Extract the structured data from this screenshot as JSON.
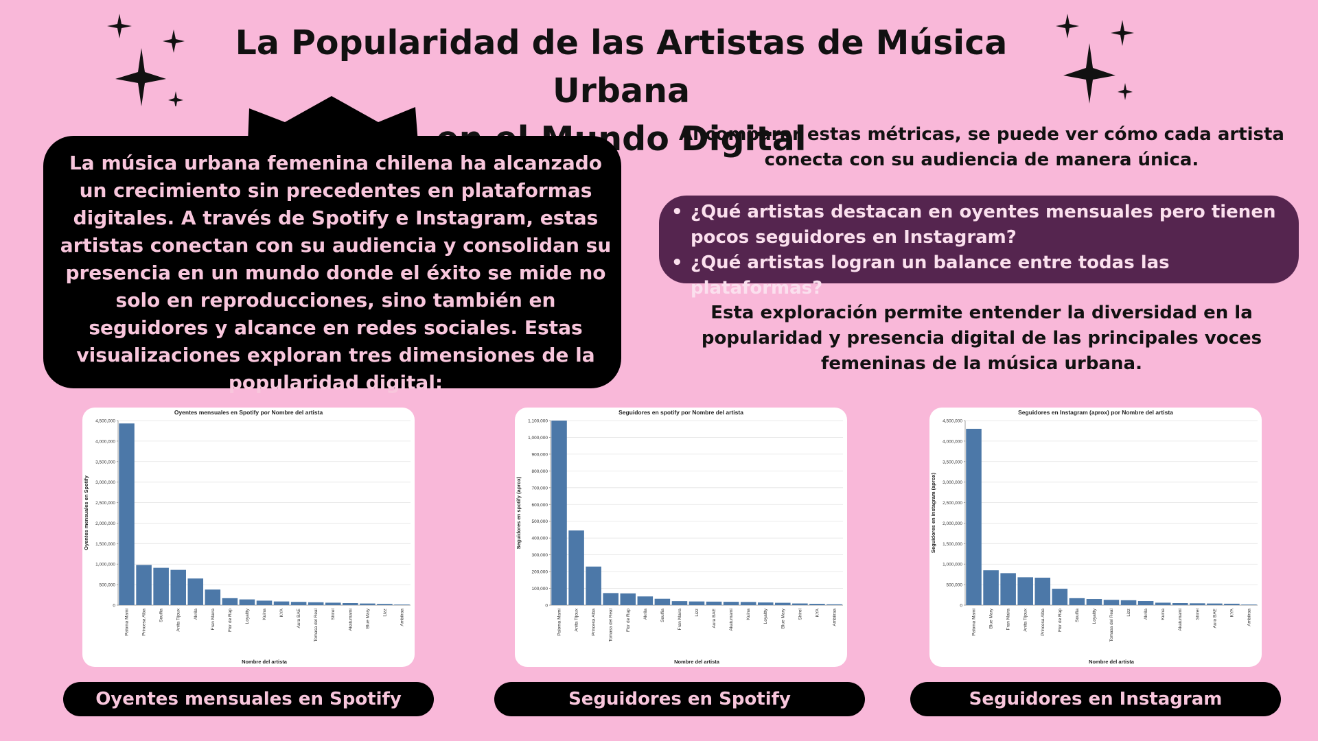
{
  "header": {
    "title_line1": "La Popularidad de las Artistas de Música Urbana",
    "title_line2": "en el Mundo Digital"
  },
  "intro": {
    "text": "La música urbana femenina chilena ha alcanzado un crecimiento sin precedentes en plataformas digitales. A través de Spotify e Instagram, estas artistas conectan con su audiencia y consolidan su presencia en un mundo donde el éxito se mide no solo en reproducciones, sino también en seguidores y alcance en redes sociales. Estas visualizaciones exploran tres dimensiones de la popularidad digital:"
  },
  "right": {
    "top_text": "Al comparar estas métricas, se puede ver cómo cada artista conecta con su audiencia de manera única.",
    "questions": [
      "¿Qué artistas destacan en oyentes mensuales pero tienen pocos seguidores en Instagram?",
      "¿Qué artistas logran un balance entre todas las plataformas?"
    ],
    "bottom_text": "Esta exploración permite entender la diversidad en la popularidad y presencia digital de las principales voces femeninas de la música urbana."
  },
  "labels": {
    "chart1": "Oyentes mensuales en Spotify",
    "chart2": "Seguidores en Spotify",
    "chart3": "Seguidores en Instagram"
  },
  "colors": {
    "background": "#f9b8d9",
    "bar": "#4c78a8",
    "box_dark": "#000000",
    "box_purple": "#55254f",
    "text_pink": "#f8c6dc"
  },
  "chart_data": [
    {
      "type": "bar",
      "title": "Oyentes mensuales en Spotify por Nombre del artista",
      "xlabel": "Nombre del artista",
      "ylabel": "Oyentes mensuales en Spotify",
      "ylim": [
        0,
        4500000
      ],
      "yticks": [
        0,
        500000,
        1000000,
        1500000,
        2000000,
        2500000,
        3000000,
        3500000,
        4000000,
        4500000
      ],
      "categories": [
        "Paloma Mami",
        "Princesa Alba",
        "Soulfia",
        "Anita Tijoux",
        "Akrila",
        "Fran Maira",
        "Flor de Rap",
        "Loyaltty",
        "Kuina",
        "KYA",
        "Aura BAE",
        "Tomasa del Real",
        "Shirel",
        "Akatumami",
        "Blue Mary",
        "Lizz",
        "Ambiiraa"
      ],
      "values": [
        4430000,
        980000,
        910000,
        860000,
        650000,
        380000,
        170000,
        140000,
        110000,
        90000,
        80000,
        70000,
        60000,
        50000,
        40000,
        30000,
        15000
      ],
      "grid": true
    },
    {
      "type": "bar",
      "title": "Seguidores en spotify por Nombre del artista",
      "xlabel": "Nombre del artista",
      "ylabel": "Seguidores en spotify (aprox)",
      "ylim": [
        0,
        1100000
      ],
      "yticks": [
        0,
        100000,
        200000,
        300000,
        400000,
        500000,
        600000,
        700000,
        800000,
        900000,
        1000000,
        1100000
      ],
      "categories": [
        "Paloma Mami",
        "Anita Tijoux",
        "Princesa Alba",
        "Tomasa del Real",
        "Flor de Rap",
        "Akrila",
        "Soulfia",
        "Fran Maira",
        "Lizz",
        "Aura BAE",
        "Akatumami",
        "Kuina",
        "Loyaltty",
        "Blue Mary",
        "Shirel",
        "KYA",
        "Ambiiraa"
      ],
      "values": [
        1100000,
        445000,
        230000,
        72000,
        70000,
        52000,
        38000,
        24000,
        22000,
        21000,
        20000,
        19000,
        16000,
        14000,
        10000,
        8000,
        5000
      ],
      "grid": true
    },
    {
      "type": "bar",
      "title": "Seguidores en Instagram (aprox) por Nombre del artista",
      "xlabel": "Nombre del artista",
      "ylabel": "Seguidores en Instagram (aprox)",
      "ylim": [
        0,
        4500000
      ],
      "yticks": [
        0,
        500000,
        1000000,
        1500000,
        2000000,
        2500000,
        3000000,
        3500000,
        4000000,
        4500000
      ],
      "categories": [
        "Paloma Mami",
        "Blue Mary",
        "Fran Maira",
        "Anita Tijoux",
        "Princesa Alba",
        "Flor de Rap",
        "Soulfia",
        "Loyaltty",
        "Tomasa del Real",
        "Lizz",
        "Akrila",
        "Kuina",
        "Akatumami",
        "Shirel",
        "Aura BAE",
        "KYA",
        "Ambiiraa"
      ],
      "values": [
        4300000,
        850000,
        780000,
        680000,
        670000,
        400000,
        170000,
        150000,
        130000,
        120000,
        100000,
        60000,
        50000,
        45000,
        40000,
        35000,
        15000
      ],
      "grid": true
    }
  ]
}
